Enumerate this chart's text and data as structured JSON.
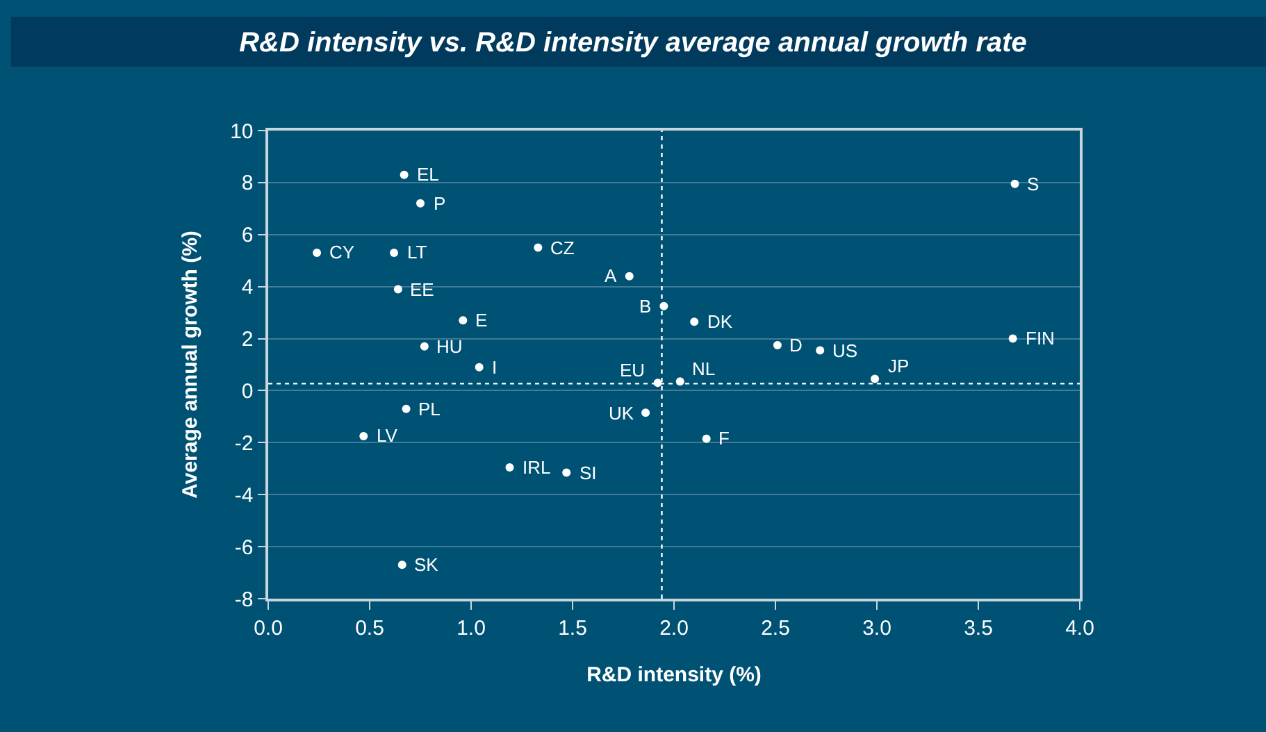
{
  "chart_data": {
    "type": "scatter",
    "title": "R&D intensity vs. R&D intensity average annual growth rate",
    "xlabel": "R&D intensity (%)",
    "ylabel": "Average annual growth (%)",
    "x": [
      0.24,
      0.62,
      0.67,
      0.75,
      0.64,
      0.96,
      0.77,
      1.04,
      1.33,
      1.78,
      1.95,
      2.1,
      2.51,
      2.72,
      2.99,
      3.68,
      3.67,
      1.92,
      2.03,
      1.86,
      2.16,
      0.68,
      0.47,
      1.19,
      1.47,
      0.66
    ],
    "series": [
      {
        "color": "#ffffff",
        "values": [
          5.3,
          5.3,
          8.3,
          7.2,
          3.9,
          2.7,
          1.7,
          0.9,
          5.5,
          4.4,
          3.25,
          2.65,
          1.75,
          1.55,
          0.45,
          7.95,
          2.0,
          0.3,
          0.35,
          -0.85,
          -1.85,
          -0.7,
          -1.75,
          -2.95,
          -3.15,
          -6.7
        ]
      }
    ],
    "annotations": [
      {
        "text": "CY",
        "x": 0.24,
        "y": 5.3
      },
      {
        "text": "LT",
        "x": 0.62,
        "y": 5.3
      },
      {
        "text": "EL",
        "x": 0.67,
        "y": 8.3
      },
      {
        "text": "P",
        "x": 0.75,
        "y": 7.2
      },
      {
        "text": "EE",
        "x": 0.64,
        "y": 3.9
      },
      {
        "text": "E",
        "x": 0.96,
        "y": 2.7
      },
      {
        "text": "HU",
        "x": 0.77,
        "y": 1.7
      },
      {
        "text": "I",
        "x": 1.04,
        "y": 0.9
      },
      {
        "text": "CZ",
        "x": 1.33,
        "y": 5.5
      },
      {
        "text": "A",
        "x": 1.78,
        "y": 4.4
      },
      {
        "text": "B",
        "x": 1.95,
        "y": 3.25
      },
      {
        "text": "DK",
        "x": 2.1,
        "y": 2.65
      },
      {
        "text": "D",
        "x": 2.51,
        "y": 1.75
      },
      {
        "text": "US",
        "x": 2.72,
        "y": 1.55
      },
      {
        "text": "JP",
        "x": 2.99,
        "y": 0.45
      },
      {
        "text": "S",
        "x": 3.68,
        "y": 7.95
      },
      {
        "text": "FIN",
        "x": 3.67,
        "y": 2.0
      },
      {
        "text": "EU",
        "x": 1.92,
        "y": 0.3
      },
      {
        "text": "NL",
        "x": 2.03,
        "y": 0.35
      },
      {
        "text": "UK",
        "x": 1.86,
        "y": -0.85
      },
      {
        "text": "F",
        "x": 2.16,
        "y": -1.85
      },
      {
        "text": "PL",
        "x": 0.68,
        "y": -0.7
      },
      {
        "text": "LV",
        "x": 0.47,
        "y": -1.75
      },
      {
        "text": "IRL",
        "x": 1.19,
        "y": -2.95
      },
      {
        "text": "SI",
        "x": 1.47,
        "y": -3.15
      },
      {
        "text": "SK",
        "x": 0.66,
        "y": -6.7
      }
    ],
    "ref_lines": [
      {
        "axis": "x",
        "value": 1.94,
        "color": "#ffffff",
        "line_style": "dotted"
      },
      {
        "axis": "y",
        "value": 0.27,
        "color": "#ffffff",
        "line_style": "dotted"
      }
    ],
    "xlim": [
      0,
      4
    ],
    "xticks": [
      {
        "value": 0,
        "label": "0.0"
      },
      {
        "value": 0.5,
        "label": "0.5"
      },
      {
        "value": 1,
        "label": "1.0"
      },
      {
        "value": 1.5,
        "label": "1.5"
      },
      {
        "value": 2,
        "label": "2.0"
      },
      {
        "value": 2.5,
        "label": "2.5"
      },
      {
        "value": 3,
        "label": "3.0"
      },
      {
        "value": 3.5,
        "label": "3.5"
      },
      {
        "value": 4,
        "label": "4.0"
      }
    ],
    "ylim": [
      -8,
      10
    ],
    "yticks": [
      -8,
      -6,
      -4,
      -2,
      0,
      2,
      4,
      6,
      8,
      10
    ],
    "grid": "y",
    "marker": "circle"
  }
}
